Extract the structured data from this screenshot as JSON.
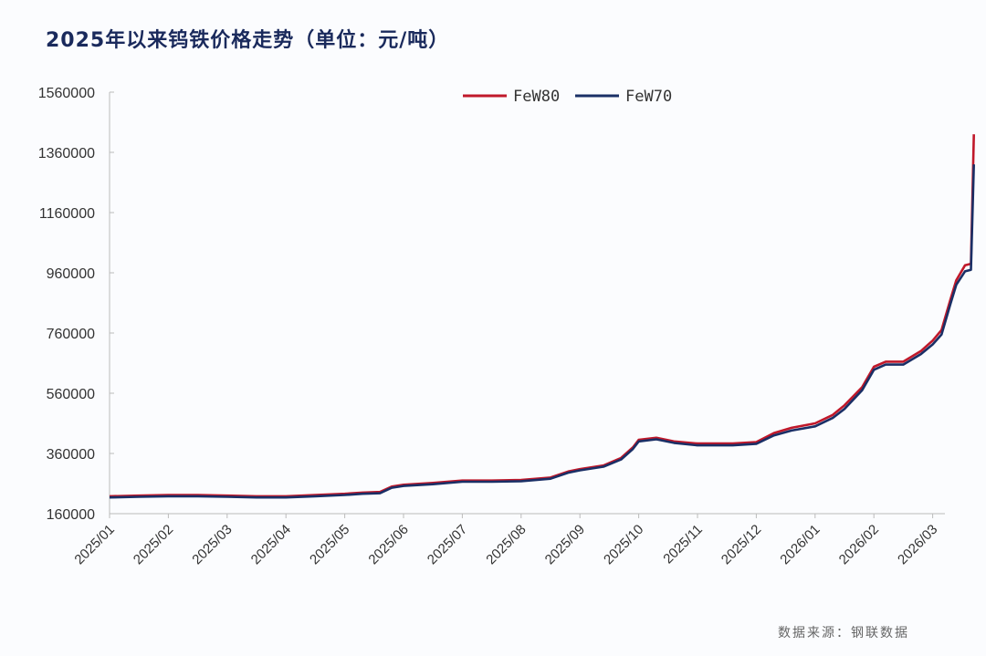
{
  "title": "2025年以来钨铁价格走势（单位：元/吨）",
  "source": "数据来源：钢联数据",
  "chart_data": {
    "type": "line",
    "title": "2025年以来钨铁价格走势（单位：元/吨）",
    "xlabel": "",
    "ylabel": "元/吨",
    "ylim": [
      160000,
      1560000
    ],
    "yticks": [
      160000,
      360000,
      560000,
      760000,
      960000,
      1160000,
      1360000,
      1560000
    ],
    "categories": [
      "2025/01",
      "2025/02",
      "2025/03",
      "2025/04",
      "2025/05",
      "2025/06",
      "2025/07",
      "2025/08",
      "2025/09",
      "2025/10",
      "2025/11",
      "2025/12",
      "2026/01",
      "2026/02",
      "2026/03"
    ],
    "grid": false,
    "legend_position": "top",
    "colors": {
      "FeW80": "#c0182a",
      "FeW70": "#1a2f66"
    },
    "x": [
      0,
      0.5,
      1,
      1.5,
      2,
      2.5,
      3,
      3.5,
      4,
      4.3,
      4.6,
      4.8,
      5,
      5.5,
      6,
      6.5,
      7,
      7.5,
      7.8,
      8,
      8.4,
      8.7,
      8.9,
      9,
      9.3,
      9.6,
      10,
      10.3,
      10.6,
      11,
      11.3,
      11.6,
      12,
      12.3,
      12.5,
      12.8,
      13,
      13.2,
      13.5,
      13.8,
      14,
      14.15,
      14.3,
      14.4,
      14.55,
      14.65,
      14.7
    ],
    "series": [
      {
        "name": "FeW80",
        "values": [
          218000,
          220000,
          222000,
          222000,
          220000,
          218000,
          218000,
          222000,
          226000,
          230000,
          232000,
          250000,
          256000,
          262000,
          270000,
          270000,
          272000,
          280000,
          300000,
          308000,
          320000,
          345000,
          380000,
          405000,
          412000,
          400000,
          393000,
          393000,
          393000,
          398000,
          428000,
          445000,
          460000,
          488000,
          520000,
          580000,
          648000,
          665000,
          665000,
          700000,
          735000,
          770000,
          870000,
          935000,
          985000,
          990000,
          1420000
        ]
      },
      {
        "name": "FeW70",
        "values": [
          214000,
          216000,
          218000,
          218000,
          216000,
          214000,
          214000,
          218000,
          222000,
          226000,
          228000,
          246000,
          252000,
          258000,
          266000,
          266000,
          268000,
          276000,
          296000,
          304000,
          316000,
          340000,
          375000,
          400000,
          407000,
          395000,
          387000,
          387000,
          387000,
          392000,
          420000,
          436000,
          450000,
          478000,
          508000,
          570000,
          638000,
          655000,
          655000,
          690000,
          722000,
          755000,
          855000,
          920000,
          965000,
          970000,
          1320000
        ]
      }
    ]
  },
  "legend": {
    "items": [
      {
        "label": "FeW80"
      },
      {
        "label": "FeW70"
      }
    ]
  }
}
